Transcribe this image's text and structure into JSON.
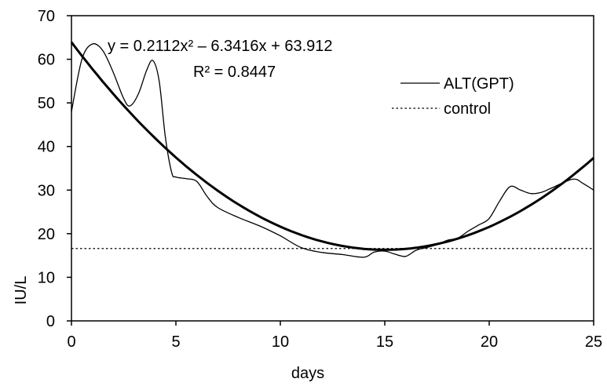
{
  "chart_data": {
    "type": "line",
    "xlabel": "days",
    "ylabel": "IU/L",
    "xlim": [
      0,
      25
    ],
    "ylim": [
      0,
      70
    ],
    "xticks": [
      0,
      5,
      10,
      15,
      20,
      25
    ],
    "yticks": [
      0,
      10,
      20,
      30,
      40,
      50,
      60,
      70
    ],
    "grid": false,
    "legend_position": "top-right",
    "series": [
      {
        "name": "ALT(GPT)",
        "style": "solid-thin",
        "color": "#000000",
        "points": [
          [
            0,
            48
          ],
          [
            0.5,
            60
          ],
          [
            1,
            63.5
          ],
          [
            1.5,
            62
          ],
          [
            2,
            57
          ],
          [
            2.5,
            51
          ],
          [
            2.8,
            49.3
          ],
          [
            3.2,
            52
          ],
          [
            3.6,
            57.5
          ],
          [
            3.9,
            59.7
          ],
          [
            4.2,
            55
          ],
          [
            4.5,
            42
          ],
          [
            4.8,
            34
          ],
          [
            5,
            33
          ],
          [
            5.5,
            32.6
          ],
          [
            6,
            32
          ],
          [
            6.5,
            28.5
          ],
          [
            7,
            26
          ],
          [
            8,
            23.7
          ],
          [
            9,
            21.8
          ],
          [
            10,
            19.5
          ],
          [
            11,
            16.8
          ],
          [
            12,
            15.7
          ],
          [
            13,
            15.2
          ],
          [
            14,
            14.6
          ],
          [
            14.5,
            15.8
          ],
          [
            15,
            16
          ],
          [
            15.5,
            15.3
          ],
          [
            16,
            14.8
          ],
          [
            16.5,
            16.2
          ],
          [
            17,
            16.8
          ],
          [
            17.5,
            17.5
          ],
          [
            18,
            18.5
          ],
          [
            18.5,
            19
          ],
          [
            19,
            20.6
          ],
          [
            19.5,
            22
          ],
          [
            20,
            23.5
          ],
          [
            20.5,
            27.5
          ],
          [
            21,
            30.8
          ],
          [
            21.5,
            30
          ],
          [
            22,
            29.2
          ],
          [
            22.5,
            29.5
          ],
          [
            23,
            30.5
          ],
          [
            24,
            32.5
          ],
          [
            24.5,
            31.5
          ],
          [
            25,
            30
          ]
        ]
      },
      {
        "name": "trendline",
        "style": "solid-thick",
        "color": "#000000",
        "equation": {
          "a": 0.2112,
          "b": -6.3416,
          "c": 63.912
        }
      },
      {
        "name": "control",
        "style": "dotted",
        "color": "#000000",
        "value": 16.6
      }
    ],
    "annotations": {
      "equation_text": "y = 0.2112x² – 6.3416x + 63.912",
      "r2_text": "R² = 0.8447"
    }
  }
}
